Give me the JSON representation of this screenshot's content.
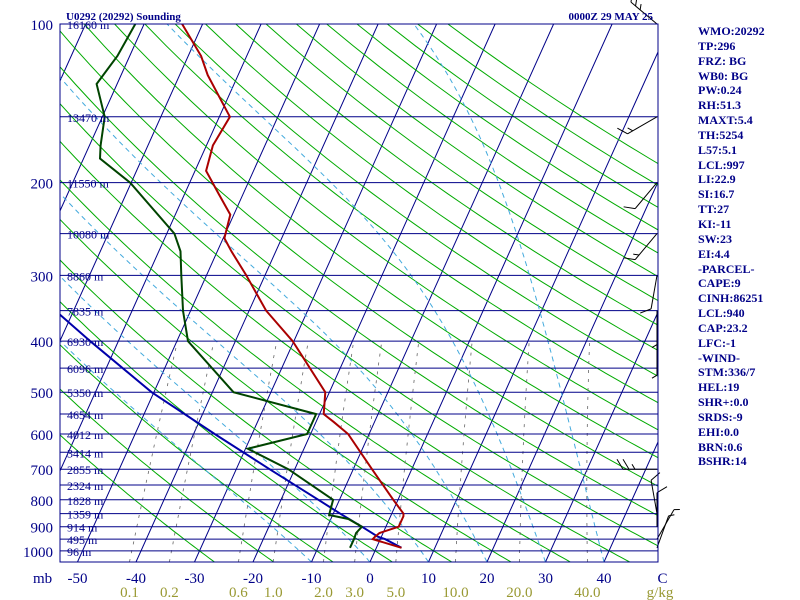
{
  "header": {
    "station": "U0292 (20292) Sounding",
    "valid_time": "0000Z 29 MAY 25"
  },
  "colors": {
    "background": "#ffffff",
    "frame": "#000088",
    "isobar": "#000088",
    "isotherm": "#000088",
    "dry_adiabat": "#00aa00",
    "moist_adiabat": "#44aadd",
    "mixing_ratio": "#666666",
    "temperature": "#aa0000",
    "dewpoint": "#004400",
    "parcel": "#0000aa",
    "wind": "#000000",
    "mixing_labels": "#999933",
    "text": "#000088"
  },
  "stats": [
    "WMO:20292",
    "TP:296",
    "FRZ: BG",
    "WB0: BG",
    "PW:0.24",
    "RH:51.3",
    "MAXT:5.4",
    "TH:5254",
    "L57:5.1",
    "LCL:997",
    "LI:22.9",
    "SI:16.7",
    "TT:27",
    "KI:-11",
    "SW:23",
    "EI:4.4",
    "-PARCEL-",
    "CAPE:9",
    "CINH:86251",
    "LCL:940",
    "CAP:23.2",
    "LFC:-1",
    "-WIND-",
    "STM:336/7",
    "HEL:19",
    "SHR+:0.0",
    "SRDS:-9",
    "EHI:0.0",
    "BRN:0.6",
    "BSHR:14"
  ],
  "chart_data": {
    "type": "skew-t",
    "pressure_unit": "mb",
    "temperature_unit": "C",
    "mixing_ratio_unit": "g/kg",
    "pressure_ticks": [
      100,
      200,
      300,
      400,
      500,
      600,
      700,
      800,
      900,
      1000
    ],
    "temperature_ticks": [
      "-50",
      "-40",
      "-30",
      "-20",
      "-10",
      "0",
      "10",
      "20",
      "30",
      "40",
      "C"
    ],
    "mixing_ratio_ticks": [
      "0.1",
      "0.2",
      "0.6",
      "1.0",
      "2.0",
      "3.0",
      "5.0",
      "10.0",
      "20.0",
      "40.0",
      "g/kg"
    ],
    "height_levels": [
      {
        "p": 100,
        "label": "16160 m"
      },
      {
        "p": 150,
        "label": "13470 m"
      },
      {
        "p": 200,
        "label": "11550 m"
      },
      {
        "p": 250,
        "label": "10080 m"
      },
      {
        "p": 300,
        "label": "8860 m"
      },
      {
        "p": 350,
        "label": "7835 m"
      },
      {
        "p": 400,
        "label": "6930 m"
      },
      {
        "p": 450,
        "label": "6096 m"
      },
      {
        "p": 500,
        "label": "5350 m"
      },
      {
        "p": 550,
        "label": "4654 m"
      },
      {
        "p": 600,
        "label": "4012 m"
      },
      {
        "p": 650,
        "label": "3414 m"
      },
      {
        "p": 700,
        "label": "2855 m"
      },
      {
        "p": 750,
        "label": "2324 m"
      },
      {
        "p": 800,
        "label": "1828 m"
      },
      {
        "p": 850,
        "label": "1359 m"
      },
      {
        "p": 900,
        "label": "914 m"
      },
      {
        "p": 950,
        "label": "495 m"
      },
      {
        "p": 1000,
        "label": "96 m"
      }
    ],
    "temperature_profile": [
      {
        "p": 987,
        "t": 4.3
      },
      {
        "p": 950,
        "t": -1.3
      },
      {
        "p": 940,
        "t": -1.1
      },
      {
        "p": 925,
        "t": -0.6
      },
      {
        "p": 900,
        "t": 2.2
      },
      {
        "p": 860,
        "t": 2.2
      },
      {
        "p": 850,
        "t": 2.0
      },
      {
        "p": 800,
        "t": -0.8
      },
      {
        "p": 700,
        "t": -6.8
      },
      {
        "p": 600,
        "t": -13.6
      },
      {
        "p": 570,
        "t": -16.9
      },
      {
        "p": 550,
        "t": -19.3
      },
      {
        "p": 500,
        "t": -20.7
      },
      {
        "p": 400,
        "t": -30.2
      },
      {
        "p": 350,
        "t": -37.1
      },
      {
        "p": 300,
        "t": -43.2
      },
      {
        "p": 270,
        "t": -47.6
      },
      {
        "p": 255,
        "t": -49.8
      },
      {
        "p": 230,
        "t": -50.6
      },
      {
        "p": 210,
        "t": -54.2
      },
      {
        "p": 190,
        "t": -58.1
      },
      {
        "p": 170,
        "t": -58.9
      },
      {
        "p": 150,
        "t": -58.2
      },
      {
        "p": 125,
        "t": -65.2
      },
      {
        "p": 115,
        "t": -67.8
      },
      {
        "p": 100,
        "t": -73.5
      }
    ],
    "dewpoint_profile": [
      {
        "p": 987,
        "td": -4.5
      },
      {
        "p": 950,
        "td": -4.5
      },
      {
        "p": 925,
        "td": -4.6
      },
      {
        "p": 900,
        "td": -4.1
      },
      {
        "p": 870,
        "td": -7.0
      },
      {
        "p": 855,
        "td": -10.6
      },
      {
        "p": 800,
        "td": -11.1
      },
      {
        "p": 700,
        "td": -21.1
      },
      {
        "p": 640,
        "td": -29.6
      },
      {
        "p": 600,
        "td": -20.6
      },
      {
        "p": 550,
        "td": -20.6
      },
      {
        "p": 500,
        "td": -36.4
      },
      {
        "p": 400,
        "td": -48.1
      },
      {
        "p": 350,
        "td": -51.3
      },
      {
        "p": 300,
        "td": -54.3
      },
      {
        "p": 270,
        "td": -56.3
      },
      {
        "p": 250,
        "td": -58.7
      },
      {
        "p": 200,
        "td": -70.2
      },
      {
        "p": 180,
        "td": -77.2
      },
      {
        "p": 170,
        "td": -78.1
      },
      {
        "p": 150,
        "td": -79.6
      },
      {
        "p": 130,
        "td": -83.5
      },
      {
        "p": 115,
        "td": -82.1
      },
      {
        "p": 100,
        "td": -81.5
      }
    ],
    "parcel_profile": [
      {
        "p": 987,
        "t": 4.3
      },
      {
        "p": 950,
        "t": 0.8
      },
      {
        "p": 940,
        "t": -0.6
      },
      {
        "p": 900,
        "t": -4.1
      },
      {
        "p": 850,
        "t": -8.8
      },
      {
        "p": 800,
        "t": -13.6
      },
      {
        "p": 700,
        "t": -24.3
      },
      {
        "p": 600,
        "t": -36.4
      },
      {
        "p": 500,
        "t": -50.4
      },
      {
        "p": 400,
        "t": -64.8
      },
      {
        "p": 300,
        "t": -82.7
      },
      {
        "p": 200,
        "t": -104.8
      },
      {
        "p": 150,
        "t": -117.4
      },
      {
        "p": 100,
        "t": -135.0
      }
    ],
    "wind_barbs": [
      {
        "p": 987,
        "dir": 20,
        "kt": 5
      },
      {
        "p": 950,
        "dir": 30,
        "kt": 5
      },
      {
        "p": 900,
        "dir": 0,
        "kt": 10
      },
      {
        "p": 850,
        "dir": 350,
        "kt": 10
      },
      {
        "p": 700,
        "dir": 270,
        "kt": 25
      },
      {
        "p": 400,
        "dir": 180,
        "kt": 5
      },
      {
        "p": 350,
        "dir": 180,
        "kt": 5
      },
      {
        "p": 300,
        "dir": 190,
        "kt": 10
      },
      {
        "p": 250,
        "dir": 220,
        "kt": 15
      },
      {
        "p": 200,
        "dir": 220,
        "kt": 10
      },
      {
        "p": 150,
        "dir": 240,
        "kt": 15
      },
      {
        "p": 100,
        "dir": 310,
        "kt": 25
      }
    ],
    "grid": true
  }
}
